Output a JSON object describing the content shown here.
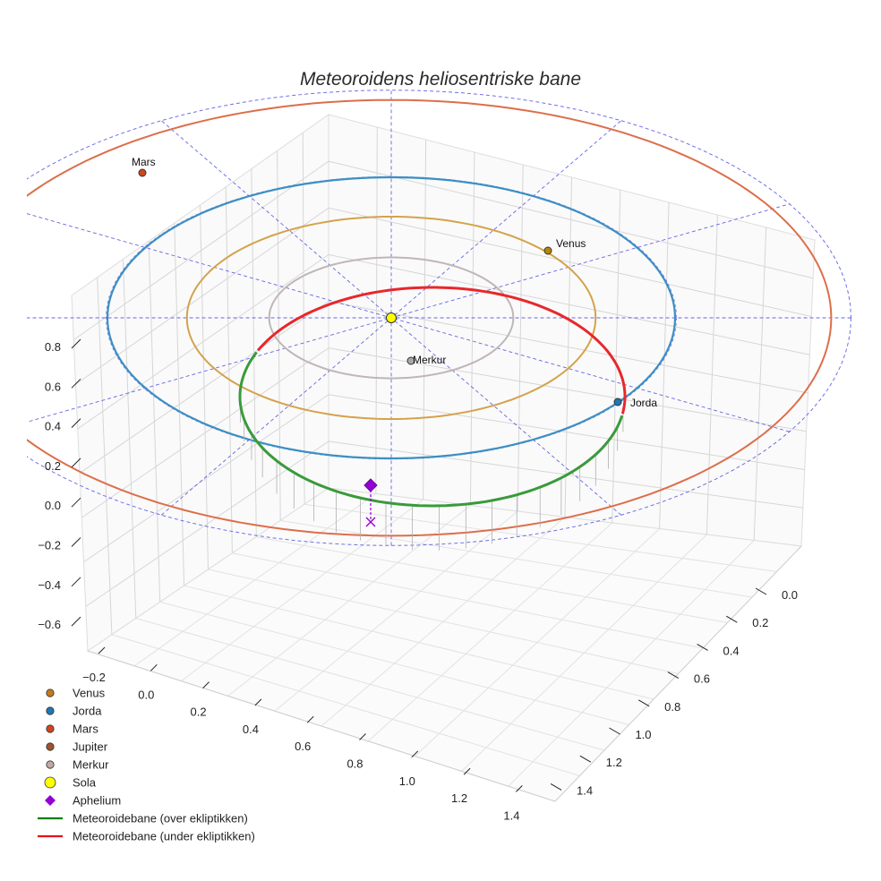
{
  "chart_data": {
    "type": "scatter",
    "title": "Meteoroidens heliosentriske bane",
    "x_ticks": [
      "−0.2",
      "0.0",
      "0.2",
      "0.4",
      "0.6",
      "0.8",
      "1.0",
      "1.2",
      "1.4"
    ],
    "y_ticks": [
      "0.0",
      "0.2",
      "0.4",
      "0.6",
      "0.8",
      "1.0",
      "1.2",
      "1.4"
    ],
    "z_ticks": [
      "0.8",
      "0.6",
      "0.4",
      "0.2",
      "0.0",
      "−0.2",
      "−0.4",
      "−0.6"
    ],
    "bodies": [
      {
        "name": "Venus",
        "label": "Venus",
        "color": "#b8860b"
      },
      {
        "name": "Jorda",
        "label": "Jorda",
        "color": "#1f77b4"
      },
      {
        "name": "Mars",
        "label": "Mars",
        "color": "#d2451e"
      },
      {
        "name": "Merkur",
        "label": "Merkur",
        "color": "#a9a9a9"
      },
      {
        "name": "Sola",
        "label": "",
        "color": "#ffff00"
      }
    ],
    "orbit_colors": {
      "Merkur": "#c0b6b6",
      "Venus": "#d4a24c",
      "Jorda": "#3d8fc4",
      "Mars": "#dd6e4a"
    },
    "meteoroid": {
      "over_color": "#3a9a3a",
      "under_color": "#e8272b",
      "aphelium_color": "#9400d3"
    },
    "grid": true
  },
  "legend": [
    {
      "label": "Venus",
      "kind": "dot",
      "color": "#c27b1b"
    },
    {
      "label": "Jorda",
      "kind": "dot",
      "color": "#1f77b4"
    },
    {
      "label": "Mars",
      "kind": "dot",
      "color": "#d2451e"
    },
    {
      "label": "Jupiter",
      "kind": "dot",
      "color": "#a0522d"
    },
    {
      "label": "Merkur",
      "kind": "dot",
      "color": "#bcaaa4"
    },
    {
      "label": "Sola",
      "kind": "sun",
      "color": "#ffff00"
    },
    {
      "label": "Aphelium",
      "kind": "diamond",
      "color": "#9400d3"
    },
    {
      "label": "Meteoroidebane (over ekliptikken)",
      "kind": "line",
      "color": "#008000"
    },
    {
      "label": "Meteoroidebane (under ekliptikken)",
      "kind": "line",
      "color": "#e8101a"
    }
  ]
}
